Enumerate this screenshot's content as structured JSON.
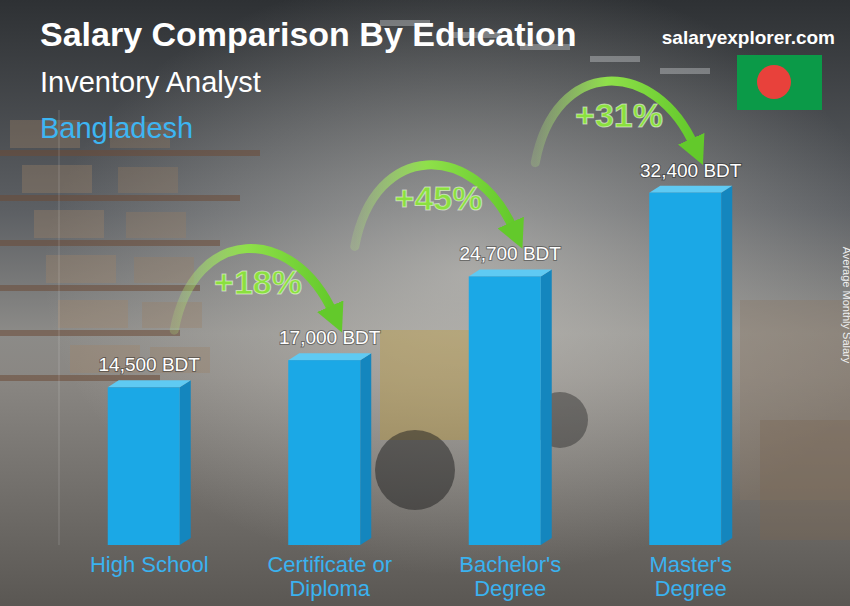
{
  "chart_data": {
    "type": "bar",
    "title": "Salary Comparison By Education",
    "subtitle": "Inventory Analyst",
    "country": "Bangladesh",
    "source": "salaryexplorer.com",
    "y_label": "Average Monthly Salary",
    "categories": [
      "High School",
      "Certificate or Diploma",
      "Bachelor's Degree",
      "Master's Degree"
    ],
    "values": [
      14500,
      17000,
      24700,
      32400
    ],
    "value_labels": [
      "14,500 BDT",
      "17,000 BDT",
      "24,700 BDT",
      "32,400 BDT"
    ],
    "annotations": [
      "+18%",
      "+45%",
      "+31%"
    ],
    "color": "#1ba8e6",
    "ylim": [
      0,
      40000
    ],
    "data_labels": true,
    "tick_labels": "x",
    "grid": false
  }
}
